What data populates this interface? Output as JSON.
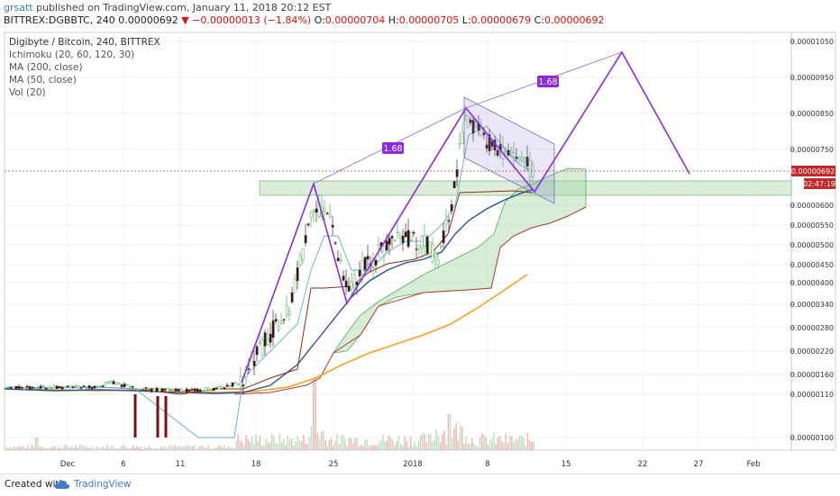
{
  "header": {
    "user": "grsatt",
    "published": " published on TradingView.com, January 11, 2018 20:12 EST",
    "symbol": "BITTREX:DGBBTC, 240",
    "last": "0.00000692",
    "change": "−0.00000013 (−1.84%)",
    "o_label": "O:",
    "o": "0.00000704",
    "h_label": "H:",
    "h": "0.00000705",
    "l_label": "L:",
    "l": "0.00000679",
    "c_label": "C:",
    "c": "0.00000692"
  },
  "legend": {
    "title": "Digibyte / Bitcoin, 240, BITTREX",
    "ichimoku": "Ichimoku (20, 60, 120, 30)",
    "ma200": "MA (200, close)",
    "ma50": "MA (50, close)",
    "vol": "Vol (20)"
  },
  "chart_data": {
    "type": "line",
    "title": "Digibyte / Bitcoin, 240, BITTREX",
    "x_ticks": [
      "Dec",
      "6",
      "11",
      "18",
      "25",
      "2018",
      "8",
      "15",
      "22",
      "27",
      "Feb"
    ],
    "y_ticks": [
      "0.00001050",
      "0.00000950",
      "0.00000850",
      "0.00000750",
      "0.00000692",
      "0.00000600",
      "0.00000550",
      "0.00000500",
      "0.00000450",
      "0.00000400",
      "0.00000340",
      "0.00000280",
      "0.00000220",
      "0.00000160",
      "0.00000110",
      "0.00000100"
    ],
    "last_price_label": "0.00000692",
    "countdown_label": "02:47:19",
    "annotations": [
      "1.68",
      "1.68"
    ],
    "pattern_points": [
      {
        "x": "Dec 16",
        "y": 1.2e-06
      },
      {
        "x": "Dec 22",
        "y": 6.55e-06
      },
      {
        "x": "Dec 25",
        "y": 3.5e-06
      },
      {
        "x": "Jan 4",
        "y": 8.7e-06
      },
      {
        "x": "Jan 10",
        "y": 6.4e-06
      },
      {
        "x": "Jan 20",
        "y": 1.02e-05
      },
      {
        "x": "Jan 27",
        "y": 6.9e-06
      }
    ],
    "series": [
      {
        "name": "MA (200, close)",
        "color": "#f6a21e"
      },
      {
        "name": "MA (50, close)",
        "color": "#2a4f9c"
      }
    ],
    "colors": {
      "up": "#4caf50",
      "down": "#b71c1c",
      "pattern": "#8a2be2",
      "cloud": "#a5d6a7",
      "zone": "#c8e6c9"
    }
  },
  "footer": {
    "created": "Created with",
    "brand": "TradingView"
  }
}
